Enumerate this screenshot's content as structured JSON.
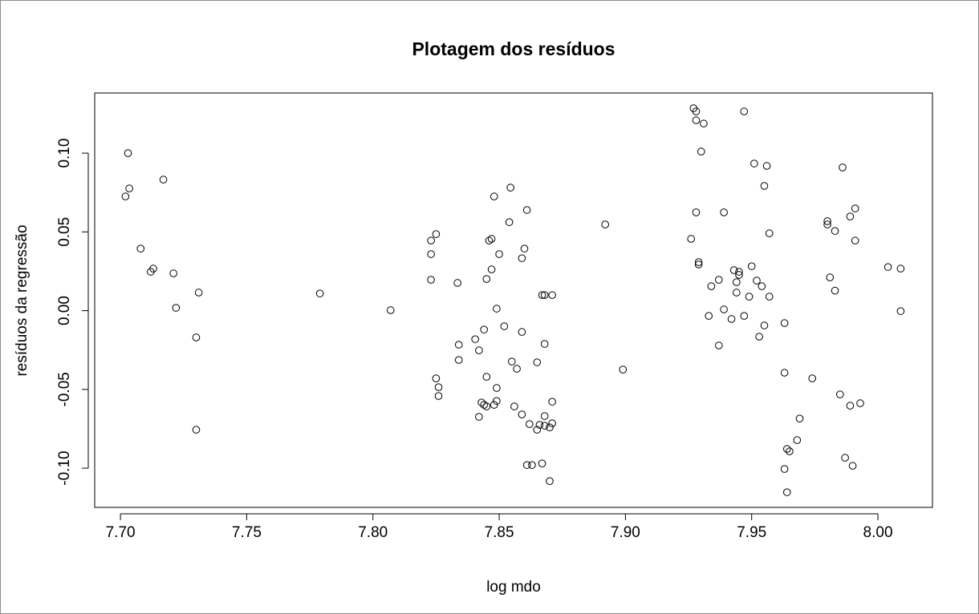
{
  "chart_data": {
    "type": "scatter",
    "title": "Plotagem dos resíduos",
    "x_label": "log mdo",
    "y_label": "resíduos da regressão",
    "xlim": [
      7.6898,
      8.0216
    ],
    "ylim": [
      -0.1249,
      0.1382
    ],
    "xticks": [
      {
        "value": 7.7,
        "label": "7.70"
      },
      7.75,
      {
        "value": 7.8,
        "label": "7.80"
      },
      7.85,
      {
        "value": 7.9,
        "label": "7.90"
      },
      7.95,
      {
        "value": 8.0,
        "label": "8.00"
      }
    ],
    "yticks": [
      {
        "value": -0.1,
        "label": "-0.10"
      },
      -0.05,
      {
        "value": 0.0,
        "label": "0.00"
      },
      0.05,
      {
        "value": 0.1,
        "label": "0.10"
      }
    ],
    "color": "#000000",
    "x": [
      7.702,
      7.703,
      7.7035,
      7.708,
      7.712,
      7.713,
      7.717,
      7.721,
      7.722,
      7.73,
      7.731,
      7.73,
      7.779,
      7.807,
      7.823,
      7.823,
      7.823,
      7.825,
      7.825,
      7.826,
      7.826,
      7.8335,
      7.834,
      7.834,
      7.8405,
      7.842,
      7.842,
      7.843,
      7.844,
      7.845,
      7.844,
      7.845,
      7.845,
      7.846,
      7.847,
      7.847,
      7.848,
      7.849,
      7.849,
      7.849,
      7.848,
      7.85,
      7.852,
      7.8545,
      7.854,
      7.855,
      7.856,
      7.857,
      7.859,
      7.86,
      7.859,
      7.859,
      7.861,
      7.861,
      7.863,
      7.862,
      7.865,
      7.865,
      7.866,
      7.867,
      7.867,
      7.868,
      7.868,
      7.868,
      7.868,
      7.87,
      7.87,
      7.871,
      7.871,
      7.871,
      7.892,
      7.899,
      7.926,
      7.927,
      7.928,
      7.928,
      7.928,
      7.929,
      7.929,
      7.93,
      7.931,
      7.933,
      7.934,
      7.937,
      7.937,
      7.939,
      7.939,
      7.942,
      7.943,
      7.944,
      7.944,
      7.945,
      7.945,
      7.947,
      7.947,
      7.949,
      7.95,
      7.951,
      7.952,
      7.953,
      7.954,
      7.955,
      7.955,
      7.956,
      7.957,
      7.957,
      7.963,
      7.963,
      7.963,
      7.964,
      7.964,
      7.965,
      7.968,
      7.969,
      7.974,
      7.98,
      7.98,
      7.981,
      7.983,
      7.983,
      7.985,
      7.986,
      7.987,
      7.989,
      7.989,
      7.99,
      7.991,
      7.991,
      7.993,
      8.004,
      8.009,
      8.009
    ],
    "y": [
      0.0725,
      0.1,
      0.0776,
      0.0394,
      0.0247,
      0.0267,
      0.0832,
      0.0237,
      0.0018,
      -0.017,
      0.0115,
      -0.0756,
      0.0109,
      0.0003,
      0.0445,
      0.0359,
      0.0196,
      0.0486,
      -0.043,
      -0.0486,
      -0.0542,
      0.0176,
      -0.0313,
      -0.0216,
      -0.0181,
      -0.0252,
      -0.0674,
      -0.0583,
      -0.0598,
      -0.0608,
      -0.012,
      -0.042,
      0.0201,
      0.0445,
      0.0456,
      0.0262,
      0.0725,
      0.0013,
      -0.0491,
      -0.0573,
      -0.0598,
      0.0359,
      -0.0099,
      0.0781,
      0.0562,
      -0.0323,
      -0.0608,
      -0.0369,
      -0.0659,
      0.0394,
      0.0333,
      -0.0135,
      0.0639,
      -0.098,
      -0.098,
      -0.072,
      -0.0756,
      -0.0328,
      -0.0725,
      0.0099,
      -0.097,
      -0.073,
      -0.0669,
      0.0099,
      -0.0211,
      -0.1082,
      -0.0741,
      0.0099,
      -0.0578,
      -0.0715,
      0.0547,
      -0.0374,
      0.0456,
      0.1285,
      0.1265,
      0.1209,
      0.0624,
      0.0308,
      0.0293,
      0.101,
      0.1188,
      -0.0033,
      0.0155,
      -0.0221,
      0.0196,
      0.0008,
      0.0624,
      -0.0053,
      0.0257,
      0.0181,
      0.0115,
      0.0247,
      0.0227,
      -0.0033,
      0.1265,
      0.0089,
      0.0282,
      0.0934,
      0.0191,
      -0.0165,
      0.0155,
      0.0792,
      -0.0094,
      0.0919,
      0.0491,
      0.0089,
      -0.0079,
      -0.0394,
      -0.1005,
      -0.0878,
      -0.1153,
      -0.0893,
      -0.0822,
      -0.0685,
      -0.043,
      0.0547,
      0.0568,
      0.0211,
      0.0506,
      0.0127,
      -0.0532,
      0.0909,
      -0.0934,
      -0.0603,
      0.0598,
      -0.0985,
      0.0649,
      0.0445,
      -0.0588,
      0.0277,
      -0.0003,
      0.0267
    ]
  }
}
